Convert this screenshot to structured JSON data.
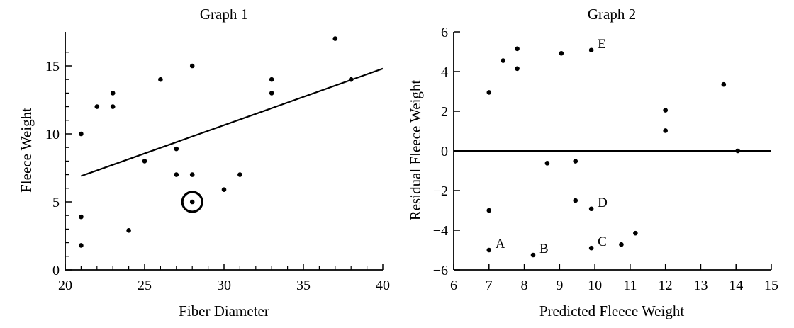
{
  "chart_data": [
    {
      "type": "scatter",
      "title": "Graph 1",
      "xlabel": "Fiber Diameter",
      "ylabel": "Fleece Weight",
      "xlim": [
        20,
        40
      ],
      "ylim": [
        0,
        17.5
      ],
      "xticks": [
        "20",
        "25",
        "30",
        "35",
        "40"
      ],
      "yticks": [
        "0",
        "5",
        "10",
        "15"
      ],
      "grid": false,
      "series": [
        {
          "points": [
            [
              21,
              10
            ],
            [
              21,
              3.9
            ],
            [
              21,
              1.8
            ],
            [
              22,
              12
            ],
            [
              23,
              13
            ],
            [
              23,
              12
            ],
            [
              24,
              2.9
            ],
            [
              25,
              8
            ],
            [
              26,
              14
            ],
            [
              27,
              8.9
            ],
            [
              27,
              7
            ],
            [
              28,
              15
            ],
            [
              28,
              7
            ],
            [
              28,
              5
            ],
            [
              30,
              5.9
            ],
            [
              31,
              7
            ],
            [
              33,
              14
            ],
            [
              33,
              13
            ],
            [
              37,
              17
            ],
            [
              38,
              14
            ]
          ]
        }
      ],
      "regression_line": {
        "x": [
          21,
          40
        ],
        "y": [
          6.9,
          14.8
        ]
      },
      "highlighted_point": [
        28,
        5
      ]
    },
    {
      "type": "scatter",
      "title": "Graph 2",
      "xlabel": "Predicted Fleece Weight",
      "ylabel": "Residual Fleece Weight",
      "xlim": [
        6,
        15
      ],
      "ylim": [
        -6,
        6
      ],
      "xticks": [
        "6",
        "7",
        "8",
        "9",
        "10",
        "11",
        "12",
        "13",
        "14",
        "15"
      ],
      "yticks": [
        "−6",
        "−4",
        "−2",
        "0",
        "2",
        "4",
        "6"
      ],
      "grid": false,
      "reference_line_y": 0,
      "series": [
        {
          "points": [
            [
              7,
              2.95
            ],
            [
              7,
              -3
            ],
            [
              7,
              -5
            ],
            [
              7.4,
              4.55
            ],
            [
              7.8,
              5.15
            ],
            [
              7.8,
              4.15
            ],
            [
              8.25,
              -5.25
            ],
            [
              8.65,
              -0.62
            ],
            [
              9.05,
              4.92
            ],
            [
              9.45,
              -2.5
            ],
            [
              9.45,
              -0.52
            ],
            [
              9.9,
              5.08
            ],
            [
              9.9,
              -2.92
            ],
            [
              9.9,
              -4.9
            ],
            [
              10.75,
              -4.72
            ],
            [
              11.15,
              -4.15
            ],
            [
              12,
              2.05
            ],
            [
              12,
              1.02
            ],
            [
              13.65,
              3.35
            ],
            [
              14.05,
              0
            ]
          ]
        }
      ],
      "annotations": [
        {
          "label": "A",
          "x": 7,
          "y": -5
        },
        {
          "label": "B",
          "x": 8.25,
          "y": -5.25
        },
        {
          "label": "C",
          "x": 9.9,
          "y": -4.9
        },
        {
          "label": "D",
          "x": 9.9,
          "y": -2.92
        },
        {
          "label": "E",
          "x": 9.9,
          "y": 5.08
        }
      ]
    }
  ]
}
